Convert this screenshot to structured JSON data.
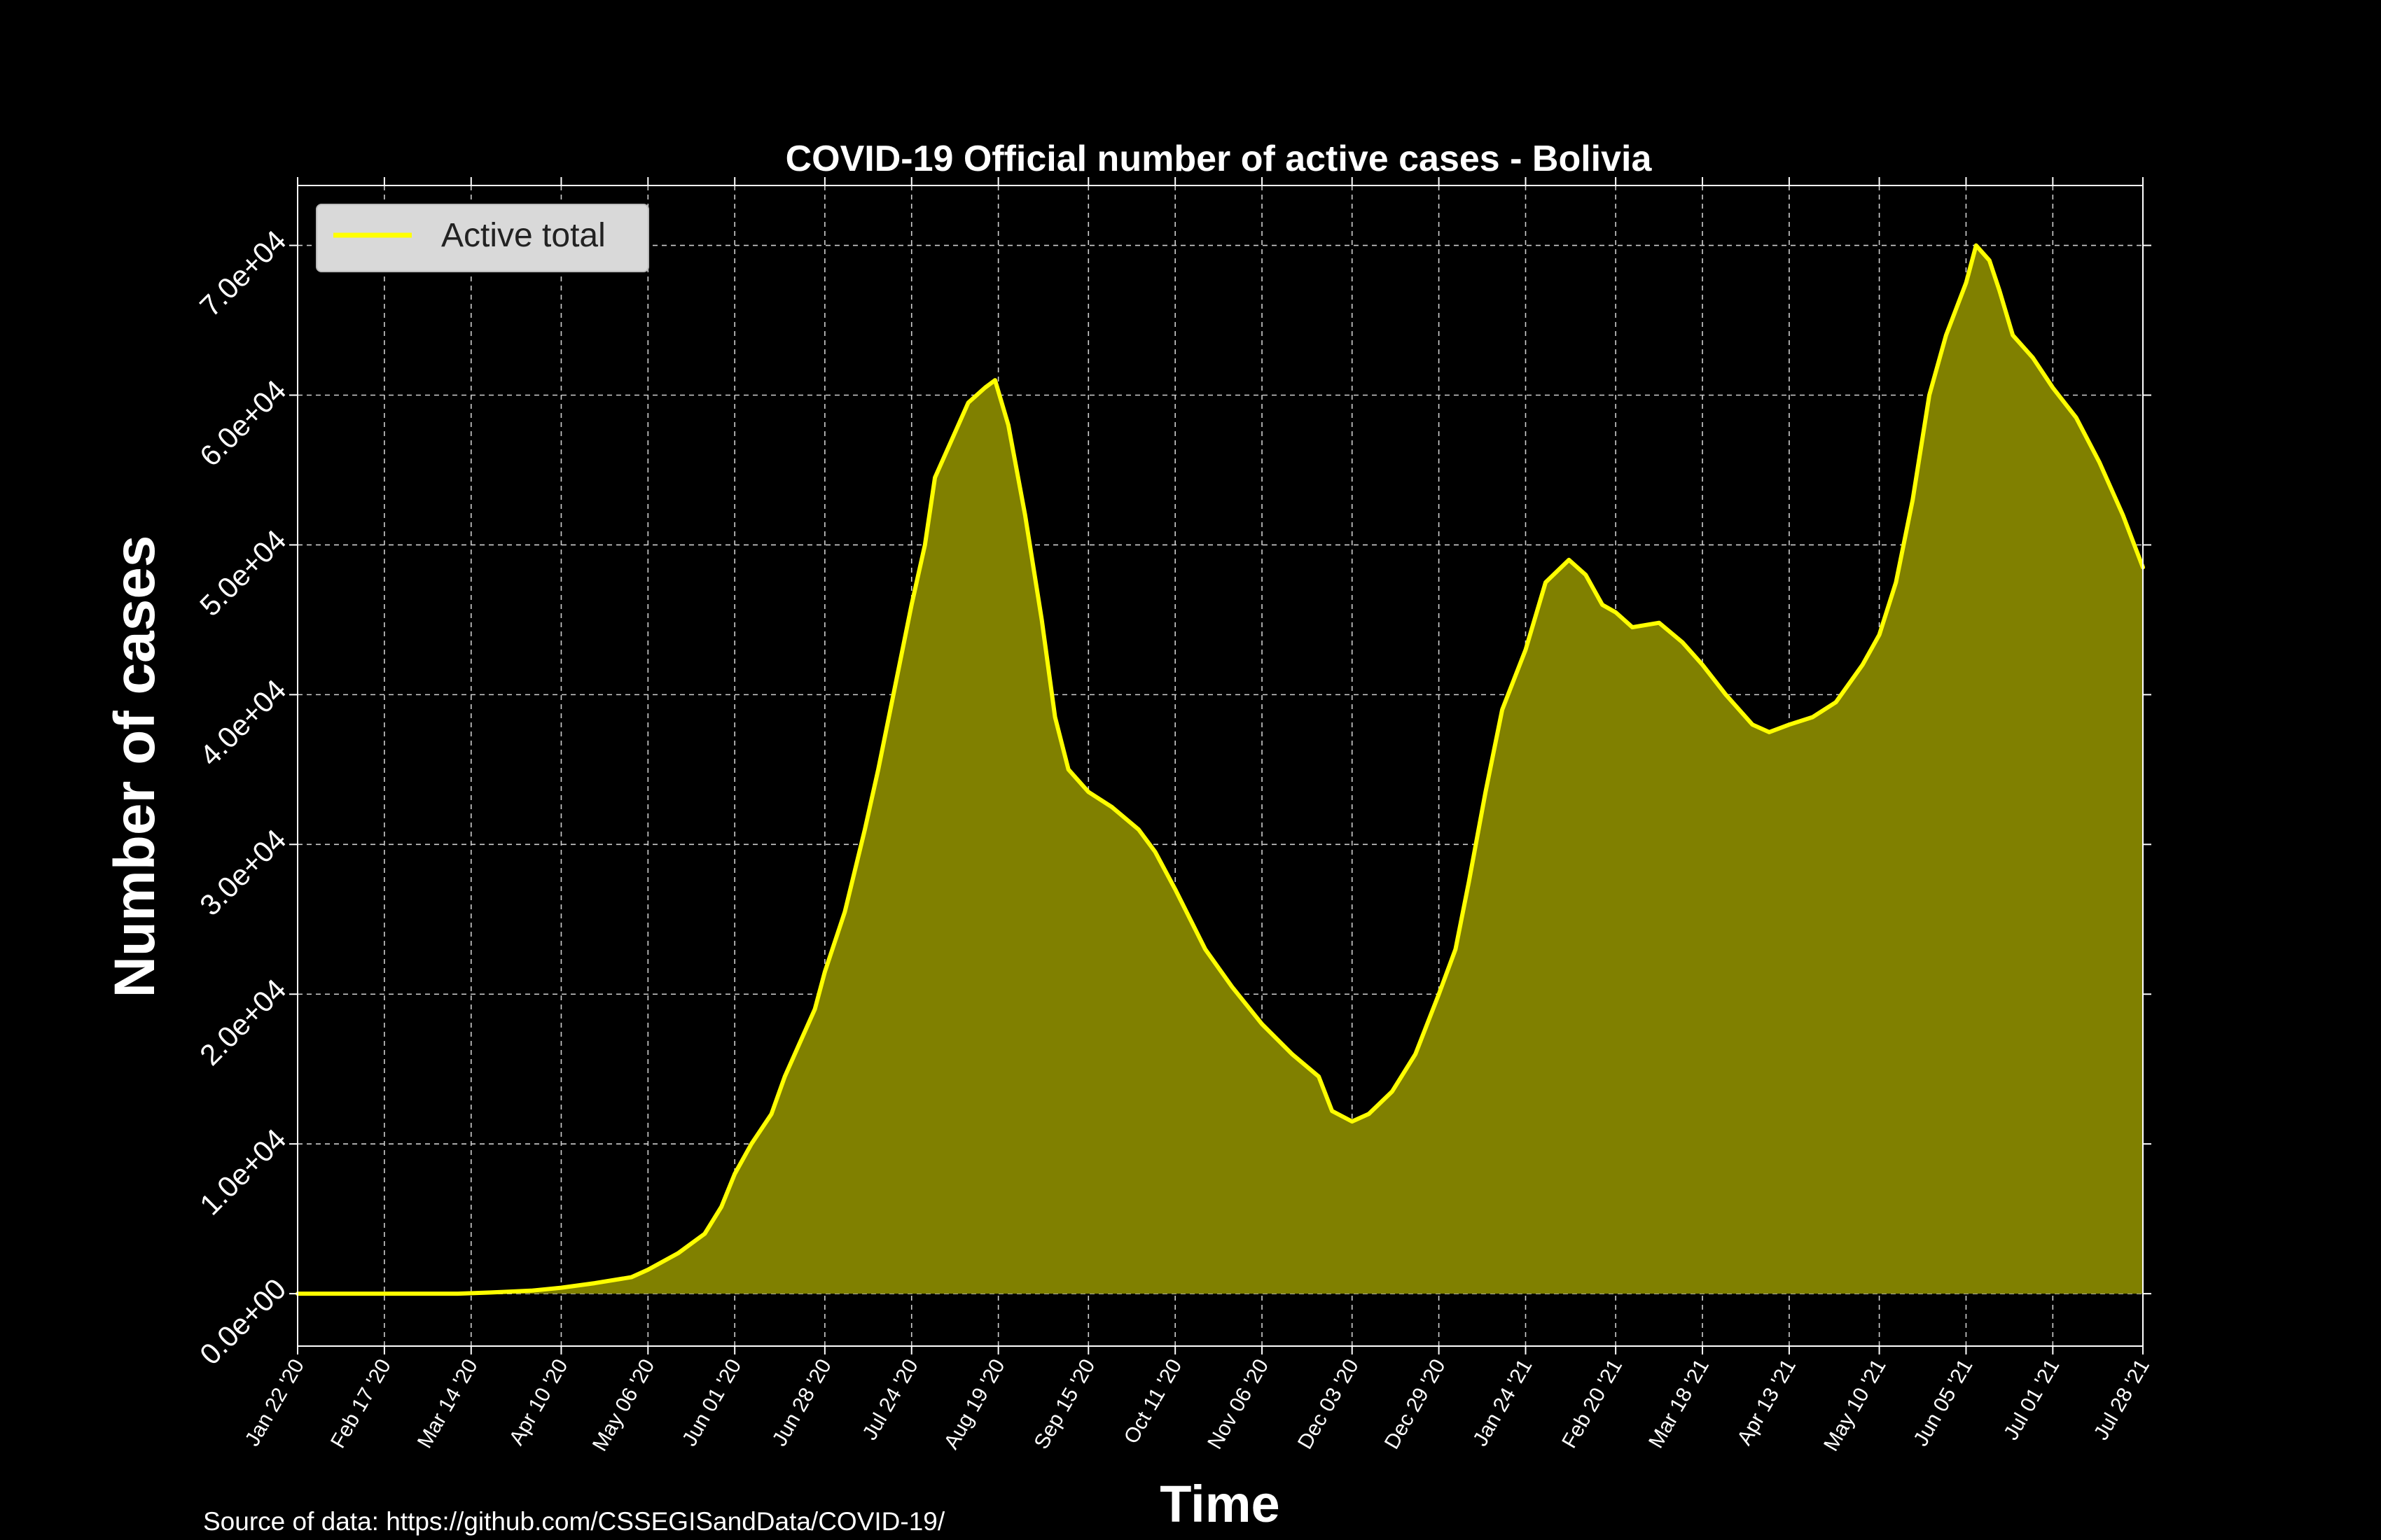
{
  "chart_data": {
    "type": "area",
    "title": "COVID-19 Official number of active cases - Bolivia",
    "xlabel": "Time",
    "ylabel": "Number of cases",
    "source": "Source of data: https://github.com/CSSEGISandData/COVID-19/",
    "x_range": [
      "2020-01-22",
      "2021-07-28"
    ],
    "ylim": [
      -3500,
      74000
    ],
    "y_ticks": [
      {
        "value": 0,
        "label": "0.0e+00"
      },
      {
        "value": 10000,
        "label": "1.0e+04"
      },
      {
        "value": 20000,
        "label": "2.0e+04"
      },
      {
        "value": 30000,
        "label": "3.0e+04"
      },
      {
        "value": 40000,
        "label": "4.0e+04"
      },
      {
        "value": 50000,
        "label": "5.0e+04"
      },
      {
        "value": 60000,
        "label": "6.0e+04"
      },
      {
        "value": 70000,
        "label": "7.0e+04"
      }
    ],
    "x_ticks": [
      {
        "date": "2020-01-22",
        "label": "Jan 22 '20"
      },
      {
        "date": "2020-02-17",
        "label": "Feb 17 '20"
      },
      {
        "date": "2020-03-14",
        "label": "Mar 14 '20"
      },
      {
        "date": "2020-04-10",
        "label": "Apr 10 '20"
      },
      {
        "date": "2020-05-06",
        "label": "May 06 '20"
      },
      {
        "date": "2020-06-01",
        "label": "Jun 01 '20"
      },
      {
        "date": "2020-06-28",
        "label": "Jun 28 '20"
      },
      {
        "date": "2020-07-24",
        "label": "Jul 24 '20"
      },
      {
        "date": "2020-08-19",
        "label": "Aug 19 '20"
      },
      {
        "date": "2020-09-15",
        "label": "Sep 15 '20"
      },
      {
        "date": "2020-10-11",
        "label": "Oct 11 '20"
      },
      {
        "date": "2020-11-06",
        "label": "Nov 06 '20"
      },
      {
        "date": "2020-12-03",
        "label": "Dec 03 '20"
      },
      {
        "date": "2020-12-29",
        "label": "Dec 29 '20"
      },
      {
        "date": "2021-01-24",
        "label": "Jan 24 '21"
      },
      {
        "date": "2021-02-20",
        "label": "Feb 20 '21"
      },
      {
        "date": "2021-03-18",
        "label": "Mar 18 '21"
      },
      {
        "date": "2021-04-13",
        "label": "Apr 13 '21"
      },
      {
        "date": "2021-05-10",
        "label": "May 10 '21"
      },
      {
        "date": "2021-06-05",
        "label": "Jun 05 '21"
      },
      {
        "date": "2021-07-01",
        "label": "Jul 01 '21"
      },
      {
        "date": "2021-07-28",
        "label": "Jul 28 '21"
      }
    ],
    "grid": true,
    "legend_position": "top-left",
    "series": [
      {
        "name": "Active total",
        "line_color": "#ffff00",
        "fill_color": "#808000",
        "points": [
          {
            "x": "2020-01-22",
            "y": 0
          },
          {
            "x": "2020-03-10",
            "y": 0
          },
          {
            "x": "2020-03-20",
            "y": 80
          },
          {
            "x": "2020-04-01",
            "y": 200
          },
          {
            "x": "2020-04-10",
            "y": 400
          },
          {
            "x": "2020-04-20",
            "y": 700
          },
          {
            "x": "2020-05-01",
            "y": 1100
          },
          {
            "x": "2020-05-06",
            "y": 1600
          },
          {
            "x": "2020-05-15",
            "y": 2700
          },
          {
            "x": "2020-05-23",
            "y": 4000
          },
          {
            "x": "2020-05-28",
            "y": 5800
          },
          {
            "x": "2020-06-01",
            "y": 8000
          },
          {
            "x": "2020-06-06",
            "y": 10000
          },
          {
            "x": "2020-06-12",
            "y": 12000
          },
          {
            "x": "2020-06-16",
            "y": 14500
          },
          {
            "x": "2020-06-20",
            "y": 16500
          },
          {
            "x": "2020-06-25",
            "y": 19000
          },
          {
            "x": "2020-06-28",
            "y": 21500
          },
          {
            "x": "2020-07-04",
            "y": 25500
          },
          {
            "x": "2020-07-10",
            "y": 31000
          },
          {
            "x": "2020-07-14",
            "y": 35000
          },
          {
            "x": "2020-07-19",
            "y": 40500
          },
          {
            "x": "2020-07-24",
            "y": 46000
          },
          {
            "x": "2020-07-28",
            "y": 50000
          },
          {
            "x": "2020-07-31",
            "y": 54500
          },
          {
            "x": "2020-08-05",
            "y": 57000
          },
          {
            "x": "2020-08-10",
            "y": 59500
          },
          {
            "x": "2020-08-15",
            "y": 60500
          },
          {
            "x": "2020-08-18",
            "y": 61000
          },
          {
            "x": "2020-08-22",
            "y": 58000
          },
          {
            "x": "2020-08-27",
            "y": 52000
          },
          {
            "x": "2020-09-01",
            "y": 45000
          },
          {
            "x": "2020-09-05",
            "y": 38500
          },
          {
            "x": "2020-09-09",
            "y": 35000
          },
          {
            "x": "2020-09-15",
            "y": 33500
          },
          {
            "x": "2020-09-22",
            "y": 32500
          },
          {
            "x": "2020-09-30",
            "y": 31000
          },
          {
            "x": "2020-10-05",
            "y": 29500
          },
          {
            "x": "2020-10-11",
            "y": 27000
          },
          {
            "x": "2020-10-20",
            "y": 23000
          },
          {
            "x": "2020-10-28",
            "y": 20500
          },
          {
            "x": "2020-11-06",
            "y": 18000
          },
          {
            "x": "2020-11-15",
            "y": 16000
          },
          {
            "x": "2020-11-23",
            "y": 14500
          },
          {
            "x": "2020-11-27",
            "y": 12200
          },
          {
            "x": "2020-12-03",
            "y": 11500
          },
          {
            "x": "2020-12-08",
            "y": 12000
          },
          {
            "x": "2020-12-15",
            "y": 13500
          },
          {
            "x": "2020-12-22",
            "y": 16000
          },
          {
            "x": "2020-12-29",
            "y": 20000
          },
          {
            "x": "2021-01-03",
            "y": 23000
          },
          {
            "x": "2021-01-07",
            "y": 27500
          },
          {
            "x": "2021-01-12",
            "y": 33500
          },
          {
            "x": "2021-01-17",
            "y": 39000
          },
          {
            "x": "2021-01-24",
            "y": 43000
          },
          {
            "x": "2021-01-30",
            "y": 47500
          },
          {
            "x": "2021-02-06",
            "y": 49000
          },
          {
            "x": "2021-02-11",
            "y": 48000
          },
          {
            "x": "2021-02-16",
            "y": 46000
          },
          {
            "x": "2021-02-20",
            "y": 45500
          },
          {
            "x": "2021-02-25",
            "y": 44500
          },
          {
            "x": "2021-03-05",
            "y": 44800
          },
          {
            "x": "2021-03-12",
            "y": 43500
          },
          {
            "x": "2021-03-18",
            "y": 42000
          },
          {
            "x": "2021-03-25",
            "y": 40000
          },
          {
            "x": "2021-04-02",
            "y": 38000
          },
          {
            "x": "2021-04-07",
            "y": 37500
          },
          {
            "x": "2021-04-13",
            "y": 38000
          },
          {
            "x": "2021-04-20",
            "y": 38500
          },
          {
            "x": "2021-04-27",
            "y": 39500
          },
          {
            "x": "2021-05-05",
            "y": 42000
          },
          {
            "x": "2021-05-10",
            "y": 44000
          },
          {
            "x": "2021-05-15",
            "y": 47500
          },
          {
            "x": "2021-05-20",
            "y": 53000
          },
          {
            "x": "2021-05-25",
            "y": 60000
          },
          {
            "x": "2021-05-30",
            "y": 64000
          },
          {
            "x": "2021-06-05",
            "y": 67500
          },
          {
            "x": "2021-06-08",
            "y": 70000
          },
          {
            "x": "2021-06-12",
            "y": 69000
          },
          {
            "x": "2021-06-15",
            "y": 67000
          },
          {
            "x": "2021-06-19",
            "y": 64000
          },
          {
            "x": "2021-06-25",
            "y": 62500
          },
          {
            "x": "2021-07-01",
            "y": 60500
          },
          {
            "x": "2021-07-08",
            "y": 58500
          },
          {
            "x": "2021-07-15",
            "y": 55500
          },
          {
            "x": "2021-07-22",
            "y": 52000
          },
          {
            "x": "2021-07-28",
            "y": 48500
          }
        ]
      }
    ]
  }
}
